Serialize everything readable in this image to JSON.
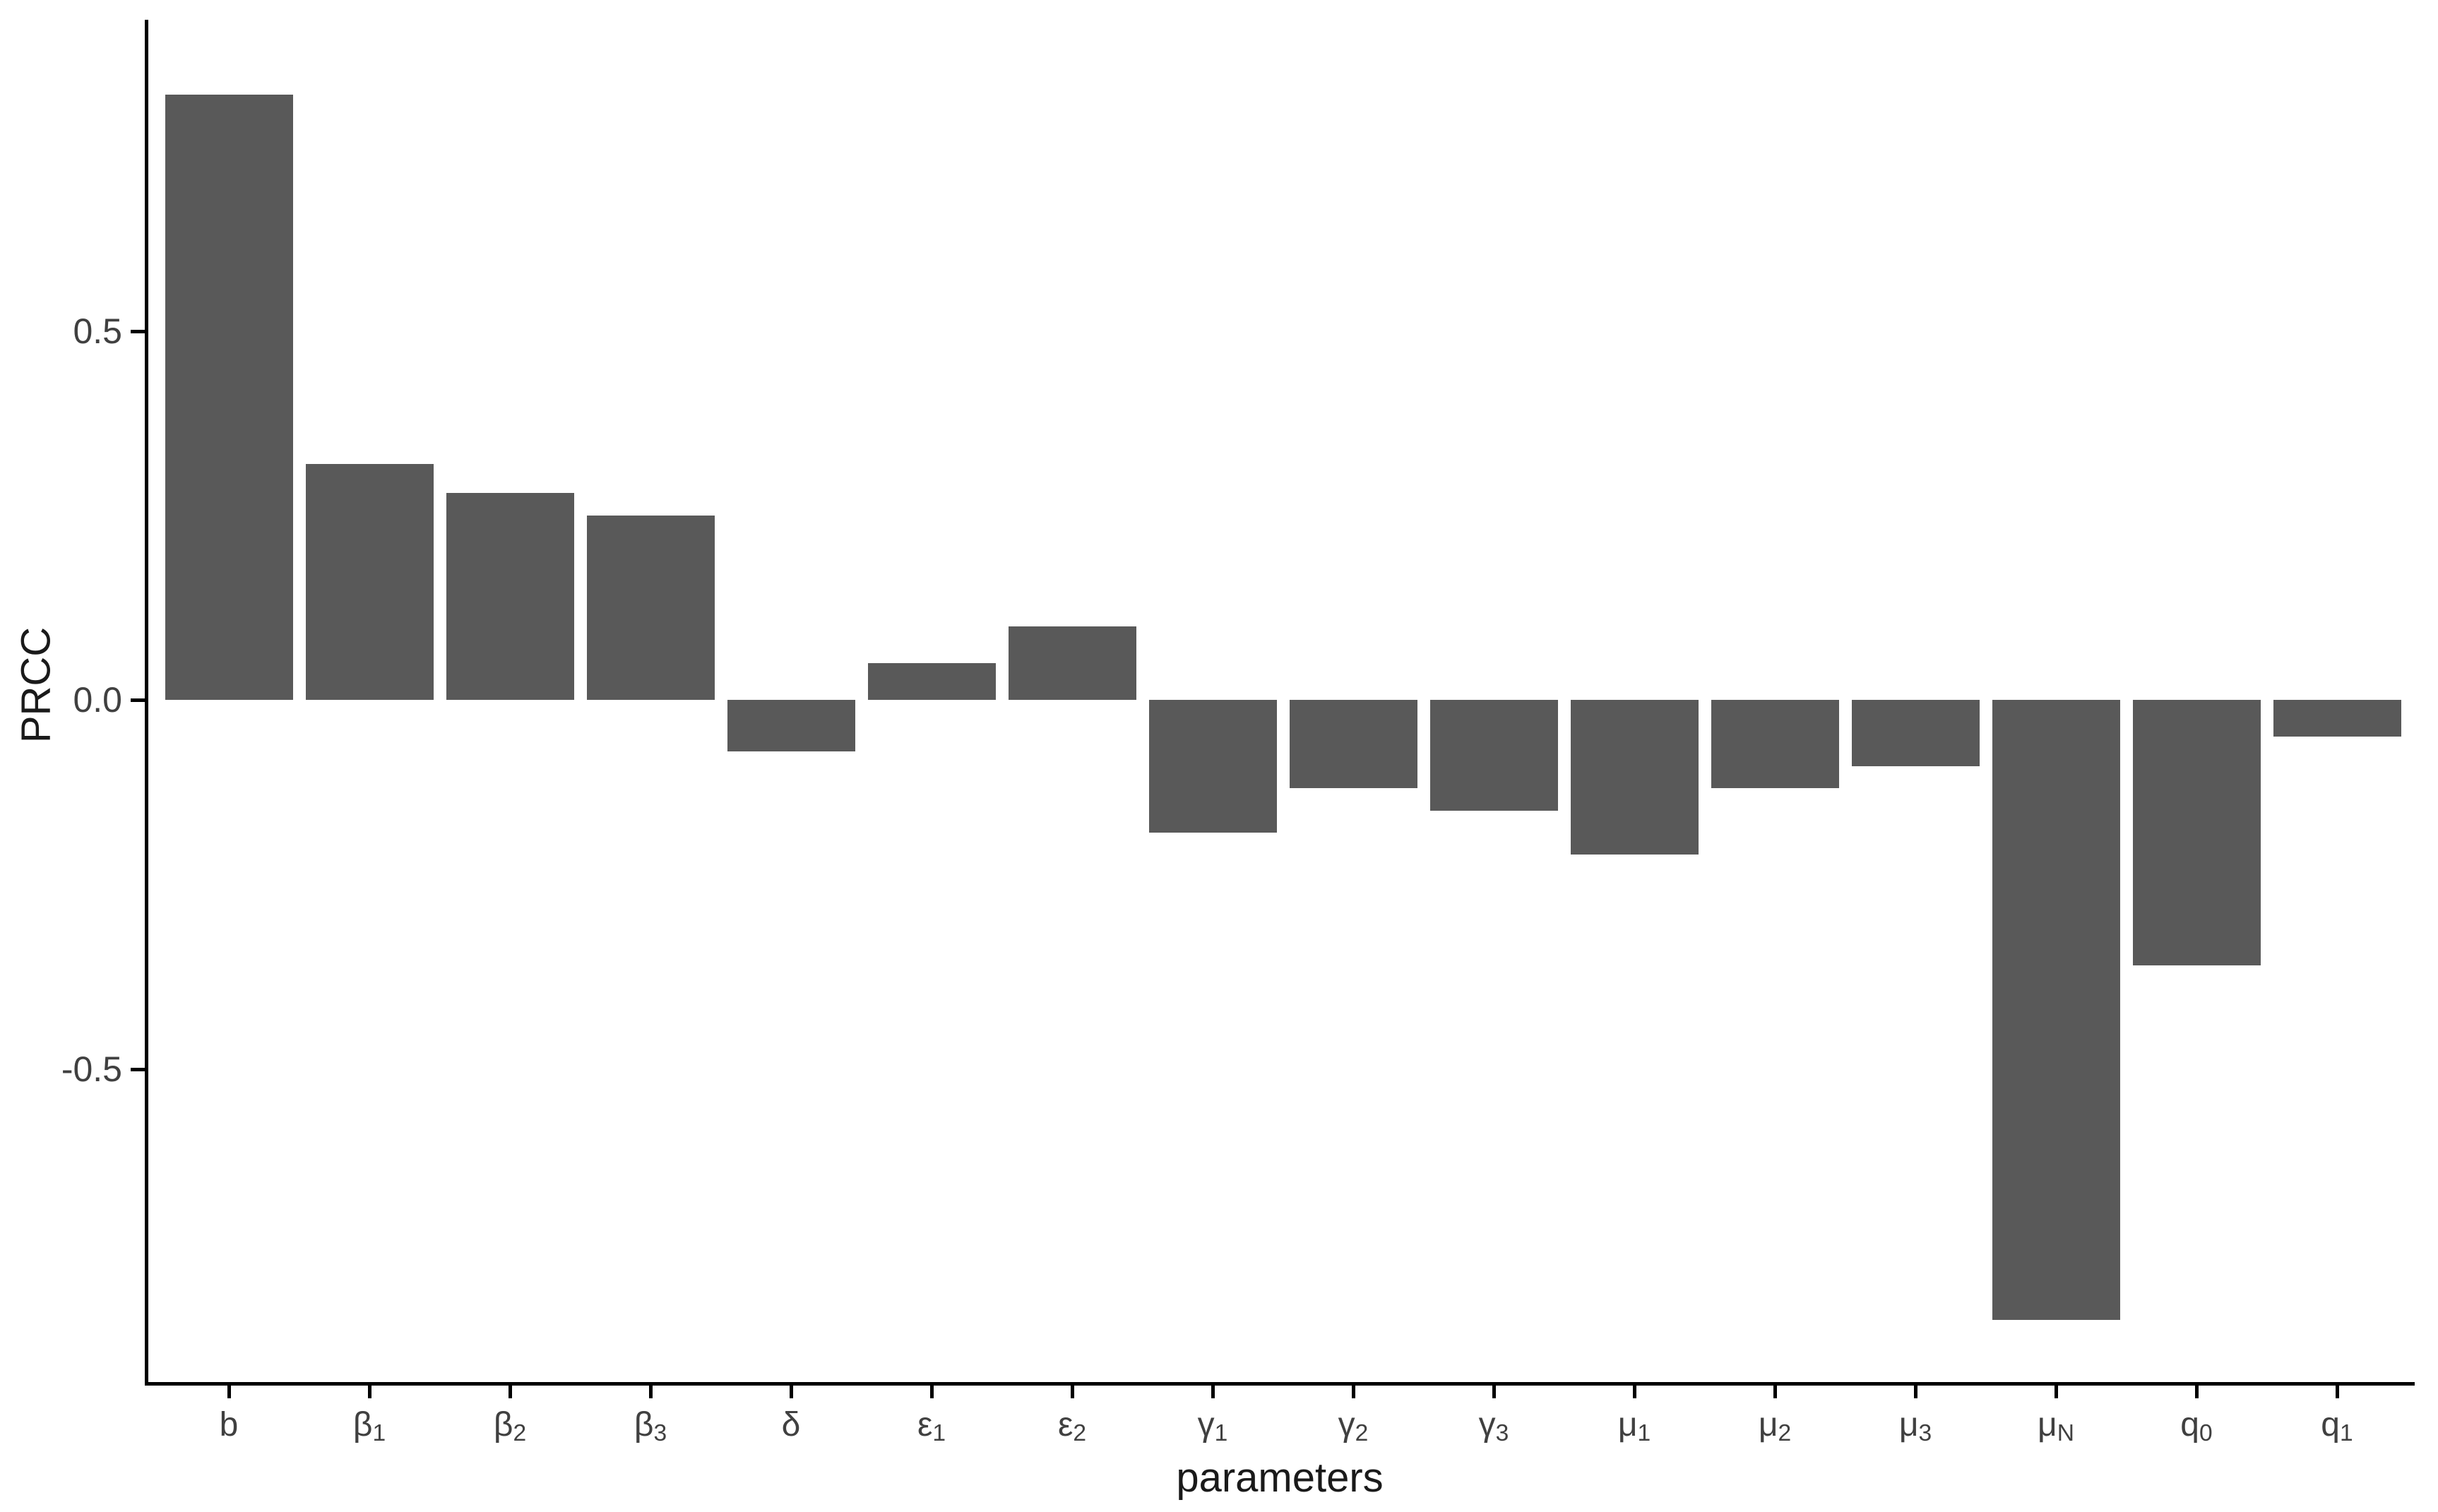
{
  "chart_data": {
    "type": "bar",
    "title": "",
    "xlabel": "parameters",
    "ylabel": "PRCC",
    "categories": [
      "b",
      "β1",
      "β2",
      "β3",
      "δ",
      "ε1",
      "ε2",
      "γ1",
      "γ2",
      "γ3",
      "μ1",
      "μ2",
      "μ3",
      "μN",
      "q0",
      "q1"
    ],
    "categories_rich": [
      {
        "main": "b",
        "sub": ""
      },
      {
        "main": "β",
        "sub": "1"
      },
      {
        "main": "β",
        "sub": "2"
      },
      {
        "main": "β",
        "sub": "3"
      },
      {
        "main": "δ",
        "sub": ""
      },
      {
        "main": "ε",
        "sub": "1"
      },
      {
        "main": "ε",
        "sub": "2"
      },
      {
        "main": "γ",
        "sub": "1"
      },
      {
        "main": "γ",
        "sub": "2"
      },
      {
        "main": "γ",
        "sub": "3"
      },
      {
        "main": "μ",
        "sub": "1"
      },
      {
        "main": "μ",
        "sub": "2"
      },
      {
        "main": "μ",
        "sub": "3"
      },
      {
        "main": "μ",
        "sub": "N"
      },
      {
        "main": "q",
        "sub": "0"
      },
      {
        "main": "q",
        "sub": "1"
      }
    ],
    "keys": [
      "b",
      "beta1",
      "beta2",
      "beta3",
      "delta",
      "epsilon1",
      "epsilon2",
      "gamma1",
      "gamma2",
      "gamma3",
      "mu1",
      "mu2",
      "mu3",
      "muN",
      "q0",
      "q1"
    ],
    "values": [
      0.82,
      0.32,
      0.28,
      0.25,
      -0.07,
      0.05,
      0.1,
      -0.18,
      -0.12,
      -0.15,
      -0.21,
      -0.12,
      -0.09,
      -0.84,
      -0.36,
      -0.05
    ],
    "yticks": [
      0.5,
      0.0,
      -0.5
    ],
    "ytick_labels": [
      "0.5",
      "0.0",
      "-0.5"
    ],
    "ylim": [
      -0.93,
      0.92
    ],
    "grid": false,
    "legend_position": "none",
    "bar_color": "#595959",
    "axis_color": "#000000",
    "tick_label_color": "#404040",
    "axis_title_color": "#1a1a1a",
    "background_color": "#ffffff"
  }
}
